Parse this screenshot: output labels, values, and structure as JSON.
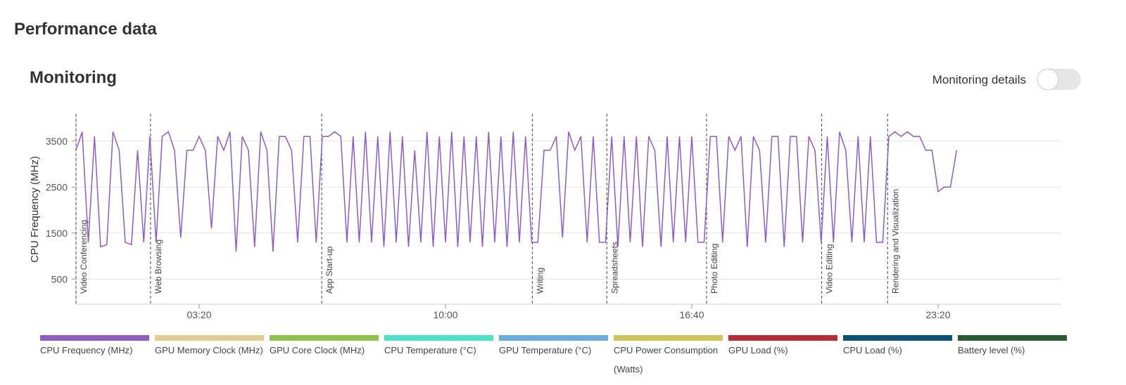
{
  "header": {
    "title": "Performance data"
  },
  "section": {
    "title": "Monitoring",
    "toggle_label": "Monitoring details"
  },
  "chart_data": {
    "type": "line",
    "ylabel": "CPU Frequency (MHz)",
    "xlim": [
      0,
      1600
    ],
    "xticks": [
      {
        "value": 200,
        "label": "03:20"
      },
      {
        "value": 600,
        "label": "10:00"
      },
      {
        "value": 1000,
        "label": "16:40"
      },
      {
        "value": 1400,
        "label": "23:20"
      }
    ],
    "ylim": [
      0,
      4000
    ],
    "yticks": [
      500,
      1500,
      2500,
      3500
    ],
    "grid": true,
    "annotations": [
      {
        "x": 0,
        "label": "Video Conferencing"
      },
      {
        "x": 121,
        "label": "Web Browsing"
      },
      {
        "x": 399,
        "label": "App Start-up"
      },
      {
        "x": 741,
        "label": "Writing"
      },
      {
        "x": 862,
        "label": "Spreadsheets"
      },
      {
        "x": 1024,
        "label": "Photo Editing"
      },
      {
        "x": 1211,
        "label": "Video Editing"
      },
      {
        "x": 1318,
        "label": "Rendering and Visualization"
      }
    ],
    "x": [
      0,
      10,
      20,
      30,
      40,
      50,
      60,
      70,
      80,
      90,
      100,
      110,
      120,
      130,
      140,
      150,
      160,
      170,
      180,
      190,
      200,
      210,
      220,
      230,
      240,
      250,
      260,
      270,
      280,
      290,
      300,
      310,
      320,
      330,
      340,
      350,
      360,
      370,
      380,
      390,
      400,
      410,
      420,
      430,
      440,
      450,
      460,
      470,
      480,
      490,
      500,
      510,
      520,
      530,
      540,
      550,
      560,
      570,
      580,
      590,
      600,
      610,
      620,
      630,
      640,
      650,
      660,
      670,
      680,
      690,
      700,
      710,
      720,
      730,
      740,
      750,
      760,
      770,
      780,
      790,
      800,
      810,
      820,
      830,
      840,
      850,
      860,
      870,
      880,
      890,
      900,
      910,
      920,
      930,
      940,
      950,
      960,
      970,
      980,
      990,
      1000,
      1010,
      1020,
      1030,
      1040,
      1050,
      1060,
      1070,
      1080,
      1090,
      1100,
      1110,
      1120,
      1130,
      1140,
      1150,
      1160,
      1170,
      1180,
      1190,
      1200,
      1210,
      1220,
      1230,
      1240,
      1250,
      1260,
      1270,
      1280,
      1290,
      1300,
      1310,
      1320,
      1330,
      1340,
      1350,
      1360,
      1370,
      1380,
      1390,
      1400,
      1410,
      1420,
      1430
    ],
    "series": [
      {
        "color": "#8f5cc2",
        "values": [
          3300,
          3700,
          1300,
          3600,
          1200,
          1250,
          3700,
          3300,
          1300,
          1250,
          3300,
          1300,
          3600,
          1300,
          3600,
          3700,
          3300,
          1400,
          3300,
          3300,
          3600,
          3300,
          1600,
          3600,
          3300,
          3700,
          1100,
          3600,
          3300,
          1200,
          3700,
          3300,
          1100,
          3600,
          3600,
          3300,
          1300,
          3600,
          3600,
          1300,
          3600,
          3600,
          3700,
          3600,
          1300,
          3600,
          1300,
          3700,
          1300,
          3600,
          1200,
          3700,
          1300,
          3600,
          1200,
          3300,
          1300,
          3700,
          1200,
          3600,
          1300,
          3700,
          1200,
          3600,
          1300,
          3600,
          1200,
          3700,
          1300,
          3600,
          1200,
          3700,
          1300,
          3600,
          1300,
          1300,
          3300,
          3300,
          3600,
          1400,
          3700,
          3300,
          3600,
          1300,
          3600,
          1300,
          1300,
          3600,
          1200,
          3600,
          1300,
          3600,
          1200,
          3600,
          3300,
          1200,
          3600,
          1300,
          3600,
          1300,
          3600,
          1300,
          1300,
          3600,
          3600,
          1300,
          3600,
          3300,
          3600,
          1200,
          3600,
          3300,
          1300,
          3600,
          3600,
          1200,
          3600,
          3600,
          1300,
          3600,
          3300,
          1300,
          3600,
          1300,
          3700,
          3300,
          1300,
          3600,
          1300,
          3600,
          1300,
          1300,
          3600,
          3700,
          3600,
          3700,
          3600,
          3600,
          3300,
          3300,
          2400,
          2500,
          2500,
          3300
        ]
      }
    ],
    "legend": [
      {
        "name": "CPU Frequency (MHz)",
        "color": "#8f5cc2"
      },
      {
        "name": "GPU Memory Clock (MHz)",
        "color": "#e3cc8f"
      },
      {
        "name": "GPU Core Clock (MHz)",
        "color": "#8fc24a"
      },
      {
        "name": "CPU Temperature (°C)",
        "color": "#4fe0c8"
      },
      {
        "name": "GPU Temperature (°C)",
        "color": "#6aaee0"
      },
      {
        "name": "CPU Power Consumption (Watts)",
        "color": "#cfc45a"
      },
      {
        "name": "GPU Load (%)",
        "color": "#b82c3a"
      },
      {
        "name": "CPU Load (%)",
        "color": "#0f4f7a"
      },
      {
        "name": "Battery level (%)",
        "color": "#2a5a32"
      }
    ]
  }
}
